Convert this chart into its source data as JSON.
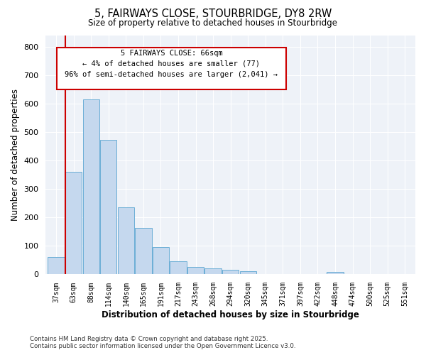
{
  "title_line1": "5, FAIRWAYS CLOSE, STOURBRIDGE, DY8 2RW",
  "title_line2": "Size of property relative to detached houses in Stourbridge",
  "xlabel": "Distribution of detached houses by size in Stourbridge",
  "ylabel": "Number of detached properties",
  "bar_color": "#c5d8ee",
  "bar_edge_color": "#6baed6",
  "background_color": "#eef2f8",
  "grid_color": "#ffffff",
  "property_line_color": "#cc0000",
  "annotation_box_color": "#cc0000",
  "categories": [
    "37sqm",
    "63sqm",
    "88sqm",
    "114sqm",
    "140sqm",
    "165sqm",
    "191sqm",
    "217sqm",
    "243sqm",
    "268sqm",
    "294sqm",
    "320sqm",
    "345sqm",
    "371sqm",
    "397sqm",
    "422sqm",
    "448sqm",
    "474sqm",
    "500sqm",
    "525sqm",
    "551sqm"
  ],
  "values": [
    60,
    360,
    615,
    472,
    235,
    163,
    97,
    45,
    25,
    20,
    15,
    10,
    0,
    0,
    0,
    0,
    8,
    0,
    0,
    0,
    0
  ],
  "ylim": [
    0,
    840
  ],
  "yticks": [
    0,
    100,
    200,
    300,
    400,
    500,
    600,
    700,
    800
  ],
  "annotation_text_line1": "5 FAIRWAYS CLOSE: 66sqm",
  "annotation_text_line2": "← 4% of detached houses are smaller (77)",
  "annotation_text_line3": "96% of semi-detached houses are larger (2,041) →",
  "footer_line1": "Contains HM Land Registry data © Crown copyright and database right 2025.",
  "footer_line2": "Contains public sector information licensed under the Open Government Licence v3.0."
}
